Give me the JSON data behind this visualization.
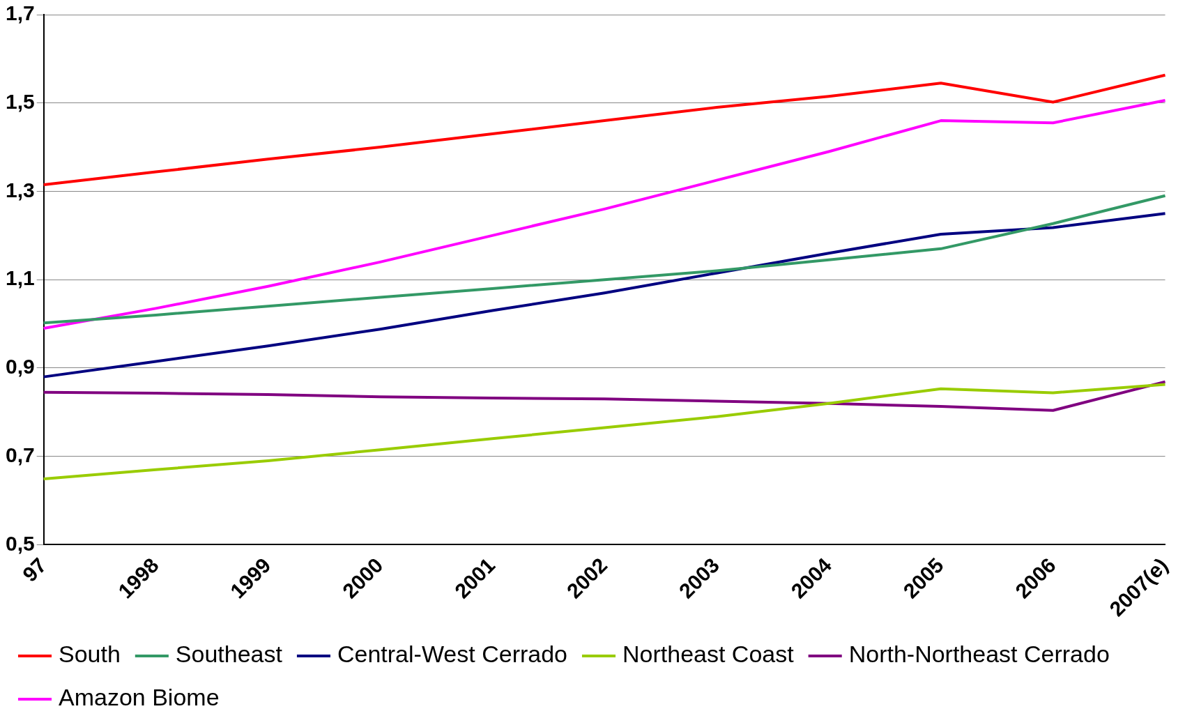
{
  "chart_data": {
    "type": "line",
    "categories": [
      "97",
      "1998",
      "1999",
      "2000",
      "2001",
      "2002",
      "2003",
      "2004",
      "2005",
      "2006",
      "2007(e)"
    ],
    "series": [
      {
        "name": "South",
        "color": "#ff0000",
        "values": [
          1.315,
          1.344,
          1.373,
          1.4,
          1.43,
          1.46,
          1.49,
          1.515,
          1.545,
          1.502,
          1.563
        ]
      },
      {
        "name": "Southeast",
        "color": "#339966",
        "values": [
          1.002,
          1.02,
          1.04,
          1.06,
          1.08,
          1.1,
          1.12,
          1.145,
          1.17,
          1.227,
          1.29
        ]
      },
      {
        "name": "Central-West Cerrado",
        "color": "#000080",
        "values": [
          0.88,
          0.915,
          0.95,
          0.988,
          1.03,
          1.07,
          1.115,
          1.16,
          1.203,
          1.218,
          1.25
        ]
      },
      {
        "name": "Northeast Coast",
        "color": "#99cc00",
        "values": [
          0.649,
          0.67,
          0.69,
          0.715,
          0.74,
          0.765,
          0.79,
          0.82,
          0.853,
          0.844,
          0.863
        ]
      },
      {
        "name": "North-Northeast Cerrado",
        "color": "#800080",
        "values": [
          0.845,
          0.843,
          0.84,
          0.835,
          0.832,
          0.83,
          0.825,
          0.82,
          0.813,
          0.804,
          0.869
        ]
      },
      {
        "name": "Amazon Biome",
        "color": "#ff00ff",
        "values": [
          0.99,
          1.035,
          1.085,
          1.14,
          1.2,
          1.26,
          1.325,
          1.39,
          1.46,
          1.455,
          1.506
        ]
      }
    ],
    "ylim": [
      0.5,
      1.7
    ],
    "yticks": [
      {
        "value": 0.5,
        "label": "0,5"
      },
      {
        "value": 0.7,
        "label": "0,7"
      },
      {
        "value": 0.9,
        "label": "0,9"
      },
      {
        "value": 1.1,
        "label": "1,1"
      },
      {
        "value": 1.3,
        "label": "1,3"
      },
      {
        "value": 1.5,
        "label": "1,5"
      },
      {
        "value": 1.7,
        "label": "1,7"
      }
    ],
    "grid": "y",
    "legend": "bottom",
    "marker": "none",
    "line_style": "solid"
  }
}
